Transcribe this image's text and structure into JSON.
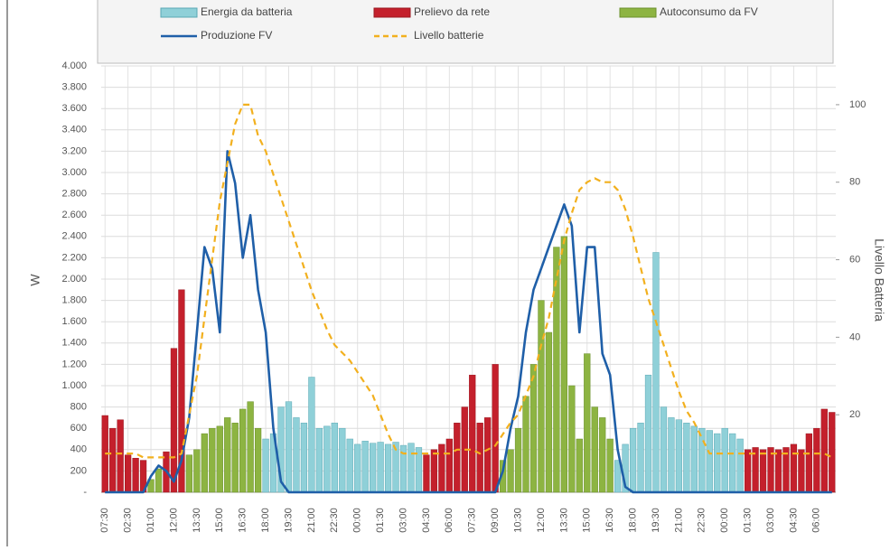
{
  "chart_data": {
    "type": "bar",
    "y_label": "W",
    "y2_label": "Livello Batteria",
    "categories": [
      "07:30",
      null,
      null,
      "02:30",
      null,
      null,
      "01:00",
      null,
      null,
      "12:00",
      null,
      null,
      "13:30",
      null,
      null,
      "15:00",
      null,
      null,
      "16:30",
      null,
      null,
      "18:00",
      null,
      null,
      "19:30",
      null,
      null,
      "21:00",
      null,
      null,
      "22:30",
      null,
      null,
      "00:00",
      null,
      null,
      "01:30",
      null,
      null,
      "03:00",
      null,
      null,
      "04:30",
      null,
      null,
      "06:00",
      null,
      null,
      "07:30",
      null,
      null,
      "09:00",
      null,
      null,
      "10:30",
      null,
      null,
      "12:00",
      null,
      null,
      "13:30",
      null,
      null,
      "15:00",
      null,
      null,
      "16:30",
      null,
      null,
      "18:00",
      null,
      null,
      "19:30",
      null,
      null,
      "21:00",
      null,
      null,
      "22:30",
      null,
      null,
      "00:00",
      null,
      null,
      "01:30",
      null,
      null,
      "03:00",
      null,
      null,
      "04:30",
      null,
      null,
      "06:00",
      null,
      null
    ],
    "series": [
      {
        "name": "Energia da batteria",
        "type": "bar",
        "color": "#8fd0d8",
        "stroke": "#5aa8b4",
        "values": [
          null,
          null,
          null,
          null,
          null,
          null,
          null,
          null,
          null,
          null,
          null,
          null,
          null,
          null,
          null,
          null,
          null,
          null,
          null,
          null,
          null,
          500,
          550,
          800,
          850,
          700,
          650,
          1080,
          600,
          620,
          650,
          600,
          500,
          450,
          480,
          460,
          470,
          450,
          470,
          440,
          460,
          420,
          null,
          null,
          null,
          null,
          null,
          null,
          null,
          null,
          null,
          null,
          null,
          null,
          null,
          null,
          null,
          null,
          null,
          null,
          null,
          null,
          null,
          null,
          null,
          null,
          null,
          300,
          450,
          600,
          650,
          1100,
          2250,
          800,
          700,
          680,
          650,
          620,
          600,
          580,
          550,
          600,
          550,
          500,
          null,
          null,
          null,
          null,
          null,
          null,
          null,
          null,
          null,
          null,
          null,
          null
        ]
      },
      {
        "name": "Prelievo da rete",
        "type": "bar",
        "color": "#c4202c",
        "stroke": "#9a1820",
        "values": [
          720,
          600,
          680,
          350,
          320,
          300,
          null,
          null,
          380,
          1350,
          1900,
          null,
          null,
          null,
          null,
          null,
          null,
          null,
          null,
          null,
          null,
          null,
          null,
          null,
          null,
          null,
          null,
          null,
          null,
          null,
          null,
          null,
          null,
          null,
          null,
          null,
          null,
          null,
          null,
          null,
          null,
          null,
          350,
          400,
          450,
          500,
          650,
          800,
          1100,
          650,
          700,
          1200,
          null,
          null,
          null,
          null,
          null,
          null,
          null,
          null,
          null,
          null,
          null,
          null,
          null,
          null,
          null,
          null,
          null,
          null,
          null,
          null,
          null,
          null,
          null,
          null,
          null,
          null,
          null,
          null,
          null,
          null,
          null,
          null,
          400,
          420,
          400,
          420,
          400,
          420,
          450,
          400,
          550,
          600,
          780,
          750
        ]
      },
      {
        "name": "Autoconsumo da FV",
        "type": "bar",
        "color": "#8db442",
        "stroke": "#6a8f2c",
        "values": [
          null,
          null,
          null,
          null,
          null,
          null,
          120,
          220,
          null,
          null,
          null,
          350,
          400,
          550,
          600,
          620,
          700,
          650,
          780,
          850,
          600,
          null,
          null,
          null,
          null,
          null,
          null,
          null,
          null,
          null,
          null,
          null,
          null,
          null,
          null,
          null,
          null,
          null,
          null,
          null,
          null,
          null,
          null,
          null,
          null,
          null,
          null,
          null,
          null,
          null,
          null,
          null,
          300,
          400,
          600,
          900,
          1200,
          1800,
          1500,
          2300,
          2400,
          1000,
          500,
          1300,
          800,
          700,
          500,
          null,
          null,
          null,
          null,
          null,
          null,
          null,
          null,
          null,
          null,
          null,
          null,
          null,
          null,
          null,
          null,
          null,
          null,
          null,
          null,
          null,
          null,
          null,
          null,
          null,
          null,
          null,
          null,
          null
        ]
      },
      {
        "name": "Produzione FV",
        "type": "line",
        "color": "#1f5fa8",
        "values": [
          0,
          0,
          0,
          0,
          0,
          0,
          150,
          250,
          200,
          100,
          300,
          700,
          1500,
          2300,
          2100,
          1500,
          3200,
          2900,
          2200,
          2600,
          1900,
          1500,
          600,
          100,
          0,
          0,
          0,
          0,
          0,
          0,
          0,
          0,
          0,
          0,
          0,
          0,
          0,
          0,
          0,
          0,
          0,
          0,
          0,
          0,
          0,
          0,
          0,
          0,
          0,
          0,
          0,
          0,
          200,
          600,
          900,
          1500,
          1900,
          2100,
          2300,
          2500,
          2700,
          2500,
          1500,
          2300,
          2300,
          1300,
          1100,
          400,
          50,
          0,
          0,
          0,
          0,
          0,
          0,
          0,
          0,
          0,
          0,
          0,
          0,
          0,
          0,
          0,
          0,
          0,
          0,
          0,
          0,
          0,
          0,
          0,
          0,
          0,
          0,
          0
        ]
      },
      {
        "name": "Livello batterie",
        "type": "line",
        "dash": true,
        "axis": "y2",
        "color": "#f2b01e",
        "values": [
          10,
          10,
          10,
          10,
          10,
          9,
          9,
          9,
          9,
          9,
          10,
          20,
          30,
          45,
          60,
          75,
          85,
          95,
          100,
          100,
          92,
          88,
          82,
          76,
          70,
          64,
          58,
          52,
          47,
          42,
          38,
          36,
          34,
          31,
          28,
          25,
          20,
          15,
          11,
          10,
          10,
          10,
          10,
          10,
          10,
          10,
          11,
          11,
          11,
          10,
          11,
          12,
          15,
          18,
          20,
          25,
          30,
          38,
          45,
          55,
          65,
          72,
          78,
          80,
          81,
          80,
          80,
          78,
          73,
          66,
          58,
          50,
          44,
          38,
          32,
          26,
          21,
          18,
          14,
          10,
          10,
          10,
          10,
          10,
          10,
          10,
          10,
          10,
          10,
          10,
          10,
          10,
          10,
          10,
          10,
          9
        ]
      }
    ],
    "ylim": [
      0,
      4000
    ],
    "yticks": [
      {
        "value": 0,
        "label": "-"
      },
      200,
      400,
      600,
      800,
      {
        "value": 1000,
        "label": "1.000"
      },
      {
        "value": 1200,
        "label": "1.200"
      },
      {
        "value": 1400,
        "label": "1.400"
      },
      {
        "value": 1600,
        "label": "1.600"
      },
      {
        "value": 1800,
        "label": "1.800"
      },
      {
        "value": 2000,
        "label": "2.000"
      },
      {
        "value": 2200,
        "label": "2.200"
      },
      {
        "value": 2400,
        "label": "2.400"
      },
      {
        "value": 2600,
        "label": "2.600"
      },
      {
        "value": 2800,
        "label": "2.800"
      },
      {
        "value": 3000,
        "label": "3.000"
      },
      {
        "value": 3200,
        "label": "3.200"
      },
      {
        "value": 3400,
        "label": "3.400"
      },
      {
        "value": 3600,
        "label": "3.600"
      },
      {
        "value": 3800,
        "label": "3.800"
      },
      {
        "value": 4000,
        "label": "4.000"
      }
    ],
    "y2lim": [
      0,
      110
    ],
    "y2ticks": [
      20,
      40,
      60,
      80,
      100
    ],
    "grid": true
  }
}
